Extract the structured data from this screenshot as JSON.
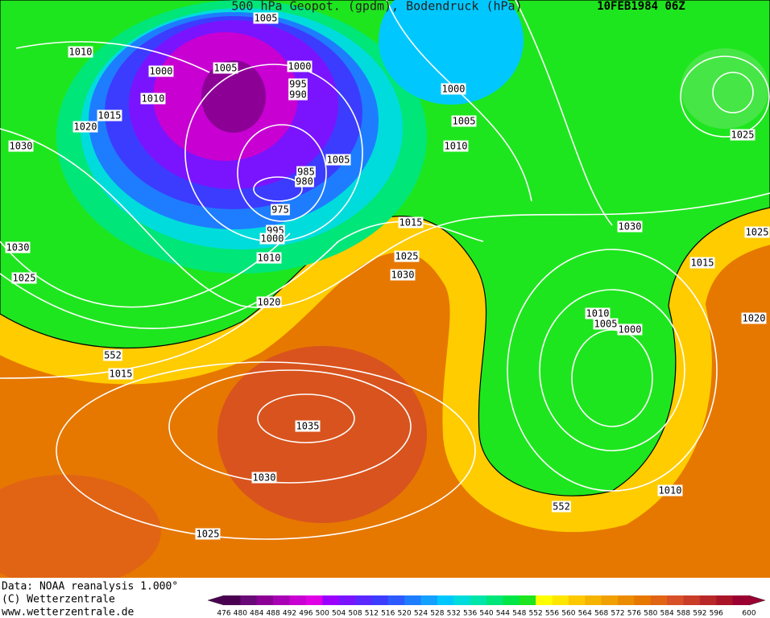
{
  "header": {
    "title": "500 hPa Geopot. (gpdm), Bodendruck (hPa)",
    "date": "10FEB1984 06Z"
  },
  "map": {
    "labels": [
      "1005",
      "1010",
      "1000",
      "1005",
      "1000",
      "995",
      "990",
      "1010",
      "1015",
      "1020",
      "1030",
      "1000",
      "1005",
      "1010",
      "1005",
      "985",
      "980",
      "975",
      "995",
      "1000",
      "1010",
      "1015",
      "1025",
      "1030",
      "1020",
      "1030",
      "1025",
      "552",
      "1015",
      "1035",
      "1030",
      "1025",
      "1030",
      "1025",
      "1025",
      "1015",
      "1020",
      "1010",
      "1005",
      "1000",
      "1010",
      "552"
    ]
  },
  "footer": {
    "source": "Data: NOAA reanalysis 1.000°",
    "copyright": "(C) Wetterzentrale",
    "url": "www.wetterzentrale.de"
  },
  "colorbar": {
    "labels": [
      "476",
      "480",
      "484",
      "488",
      "492",
      "496",
      "500",
      "504",
      "508",
      "512",
      "516",
      "520",
      "524",
      "528",
      "532",
      "536",
      "540",
      "544",
      "548",
      "552",
      "556",
      "560",
      "564",
      "568",
      "572",
      "576",
      "580",
      "584",
      "588",
      "592",
      "596",
      "600"
    ],
    "colors": [
      "#4a0050",
      "#6a0a78",
      "#8c0096",
      "#a800b4",
      "#c800d2",
      "#e000e6",
      "#9b00ff",
      "#7a14ff",
      "#5a28ff",
      "#3c3cff",
      "#2d5aff",
      "#1e7dff",
      "#14a0ff",
      "#00c8ff",
      "#00dcdc",
      "#00e6aa",
      "#00e678",
      "#00e646",
      "#1ee61e",
      "#ffff00",
      "#ffe600",
      "#ffc800",
      "#f5b400",
      "#f0a000",
      "#eb8c00",
      "#e67800",
      "#e16414",
      "#d75028",
      "#c83c28",
      "#b92828",
      "#aa1428",
      "#9b0032"
    ]
  }
}
